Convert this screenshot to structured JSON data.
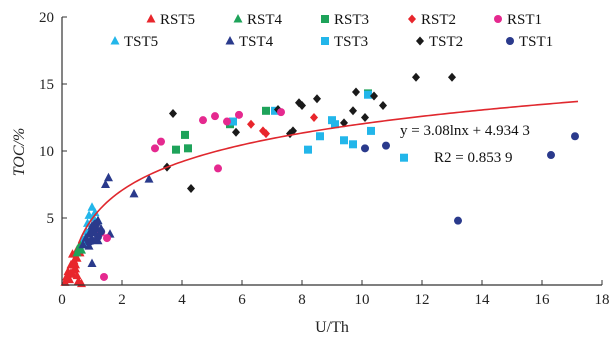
{
  "chart_data": {
    "type": "scatter",
    "xlabel": "U/Th",
    "ylabel": "TOC/%",
    "xlim": [
      0,
      18
    ],
    "ylim": [
      0,
      20
    ],
    "xticks": [
      "0",
      "2",
      "4",
      "6",
      "8",
      "10",
      "12",
      "14",
      "16",
      "18"
    ],
    "yticks": [
      "5",
      "10",
      "15",
      "20"
    ],
    "grid": false,
    "legend_placement": "top",
    "fit": {
      "equation": "y = 3.08lnx + 4.934 3",
      "r2": "R2 = 0.853 9",
      "a": 3.08,
      "b": 4.9343,
      "x_range": [
        0.55,
        17.2
      ],
      "color": "#e0282e"
    },
    "series": [
      {
        "name": "RST5",
        "marker": "triangle",
        "color": "#e8262c",
        "points": [
          [
            0.1,
            0.2
          ],
          [
            0.15,
            0.6
          ],
          [
            0.2,
            1.0
          ],
          [
            0.25,
            0.4
          ],
          [
            0.3,
            1.5
          ],
          [
            0.35,
            0.8
          ],
          [
            0.4,
            1.8
          ],
          [
            0.45,
            1.2
          ],
          [
            0.5,
            2.0
          ],
          [
            0.55,
            0.3
          ],
          [
            0.6,
            2.4
          ],
          [
            0.65,
            0.1
          ],
          [
            0.5,
            0.7
          ],
          [
            0.35,
            2.3
          ],
          [
            0.4,
            1.1
          ],
          [
            0.3,
            0.9
          ],
          [
            0.5,
            2.6
          ],
          [
            0.2,
            0.5
          ],
          [
            0.45,
            1.5
          ]
        ]
      },
      {
        "name": "TST5",
        "marker": "triangle",
        "color": "#22b6ea",
        "points": [
          [
            0.6,
            2.8
          ],
          [
            0.7,
            3.4
          ],
          [
            0.8,
            4.0
          ],
          [
            0.85,
            4.6
          ],
          [
            0.9,
            5.2
          ],
          [
            1.0,
            5.8
          ],
          [
            1.1,
            5.4
          ],
          [
            0.95,
            4.2
          ],
          [
            1.2,
            4.8
          ],
          [
            0.75,
            3.0
          ],
          [
            1.05,
            5.0
          ],
          [
            0.85,
            3.8
          ]
        ]
      },
      {
        "name": "RST4",
        "marker": "triangle",
        "color": "#1ea35a",
        "points": [
          [
            0.5,
            2.4
          ],
          [
            0.55,
            2.7
          ],
          [
            0.6,
            3.0
          ],
          [
            0.65,
            2.6
          ]
        ]
      },
      {
        "name": "TST4",
        "marker": "triangle",
        "color": "#2a3a8c",
        "points": [
          [
            0.7,
            3.0
          ],
          [
            0.8,
            3.5
          ],
          [
            0.9,
            3.8
          ],
          [
            1.0,
            4.4
          ],
          [
            1.1,
            4.1
          ],
          [
            1.2,
            4.8
          ],
          [
            1.3,
            4.2
          ],
          [
            1.45,
            7.5
          ],
          [
            1.55,
            8.0
          ],
          [
            1.6,
            3.8
          ],
          [
            2.4,
            6.8
          ],
          [
            2.9,
            7.9
          ],
          [
            1.0,
            1.6
          ],
          [
            1.2,
            3.3
          ],
          [
            0.9,
            2.9
          ]
        ]
      },
      {
        "name": "RST3",
        "marker": "square",
        "color": "#1ea35a",
        "points": [
          [
            3.8,
            10.1
          ],
          [
            4.1,
            11.2
          ],
          [
            4.2,
            10.2
          ],
          [
            5.6,
            12.0
          ],
          [
            6.8,
            13.0
          ],
          [
            10.2,
            14.3
          ]
        ]
      },
      {
        "name": "TST3",
        "marker": "square",
        "color": "#22b6ea",
        "points": [
          [
            5.7,
            12.2
          ],
          [
            7.1,
            13.0
          ],
          [
            8.2,
            10.1
          ],
          [
            8.6,
            11.1
          ],
          [
            9.0,
            12.3
          ],
          [
            9.4,
            10.8
          ],
          [
            9.7,
            10.5
          ],
          [
            10.3,
            11.5
          ],
          [
            11.4,
            9.5
          ],
          [
            10.2,
            14.2
          ],
          [
            9.1,
            12.0
          ]
        ]
      },
      {
        "name": "RST2",
        "marker": "diamond",
        "color": "#e8262c",
        "points": [
          [
            6.3,
            12.0
          ],
          [
            6.7,
            11.5
          ],
          [
            6.8,
            11.3
          ],
          [
            8.4,
            12.5
          ]
        ]
      },
      {
        "name": "TST2",
        "marker": "diamond",
        "color": "#1a1a1a",
        "points": [
          [
            3.7,
            12.8
          ],
          [
            3.5,
            8.8
          ],
          [
            4.3,
            7.2
          ],
          [
            5.8,
            11.4
          ],
          [
            7.2,
            13.1
          ],
          [
            7.6,
            11.3
          ],
          [
            8.0,
            13.4
          ],
          [
            8.5,
            13.9
          ],
          [
            9.4,
            12.1
          ],
          [
            9.7,
            13.0
          ],
          [
            9.8,
            14.4
          ],
          [
            10.1,
            12.5
          ],
          [
            10.4,
            14.1
          ],
          [
            10.7,
            13.4
          ],
          [
            11.8,
            15.5
          ],
          [
            13.0,
            15.5
          ],
          [
            7.7,
            11.5
          ],
          [
            7.9,
            13.6
          ]
        ]
      },
      {
        "name": "RST1",
        "marker": "circle",
        "color": "#e5298f",
        "points": [
          [
            3.1,
            10.2
          ],
          [
            3.3,
            10.7
          ],
          [
            4.7,
            12.3
          ],
          [
            5.1,
            12.6
          ],
          [
            5.5,
            12.2
          ],
          [
            5.9,
            12.7
          ],
          [
            5.2,
            8.7
          ],
          [
            7.3,
            12.9
          ],
          [
            1.4,
            0.6
          ],
          [
            1.5,
            3.5
          ],
          [
            1.3,
            3.9
          ]
        ]
      },
      {
        "name": "TST1",
        "marker": "circle",
        "color": "#2a3a8c",
        "points": [
          [
            0.9,
            3.2
          ],
          [
            1.0,
            3.9
          ],
          [
            1.1,
            4.3
          ],
          [
            1.2,
            3.6
          ],
          [
            1.3,
            4.0
          ],
          [
            10.1,
            10.2
          ],
          [
            10.8,
            10.4
          ],
          [
            13.2,
            4.8
          ],
          [
            16.3,
            9.7
          ],
          [
            17.1,
            11.1
          ],
          [
            1.0,
            3.3
          ],
          [
            1.15,
            4.6
          ]
        ]
      }
    ]
  }
}
